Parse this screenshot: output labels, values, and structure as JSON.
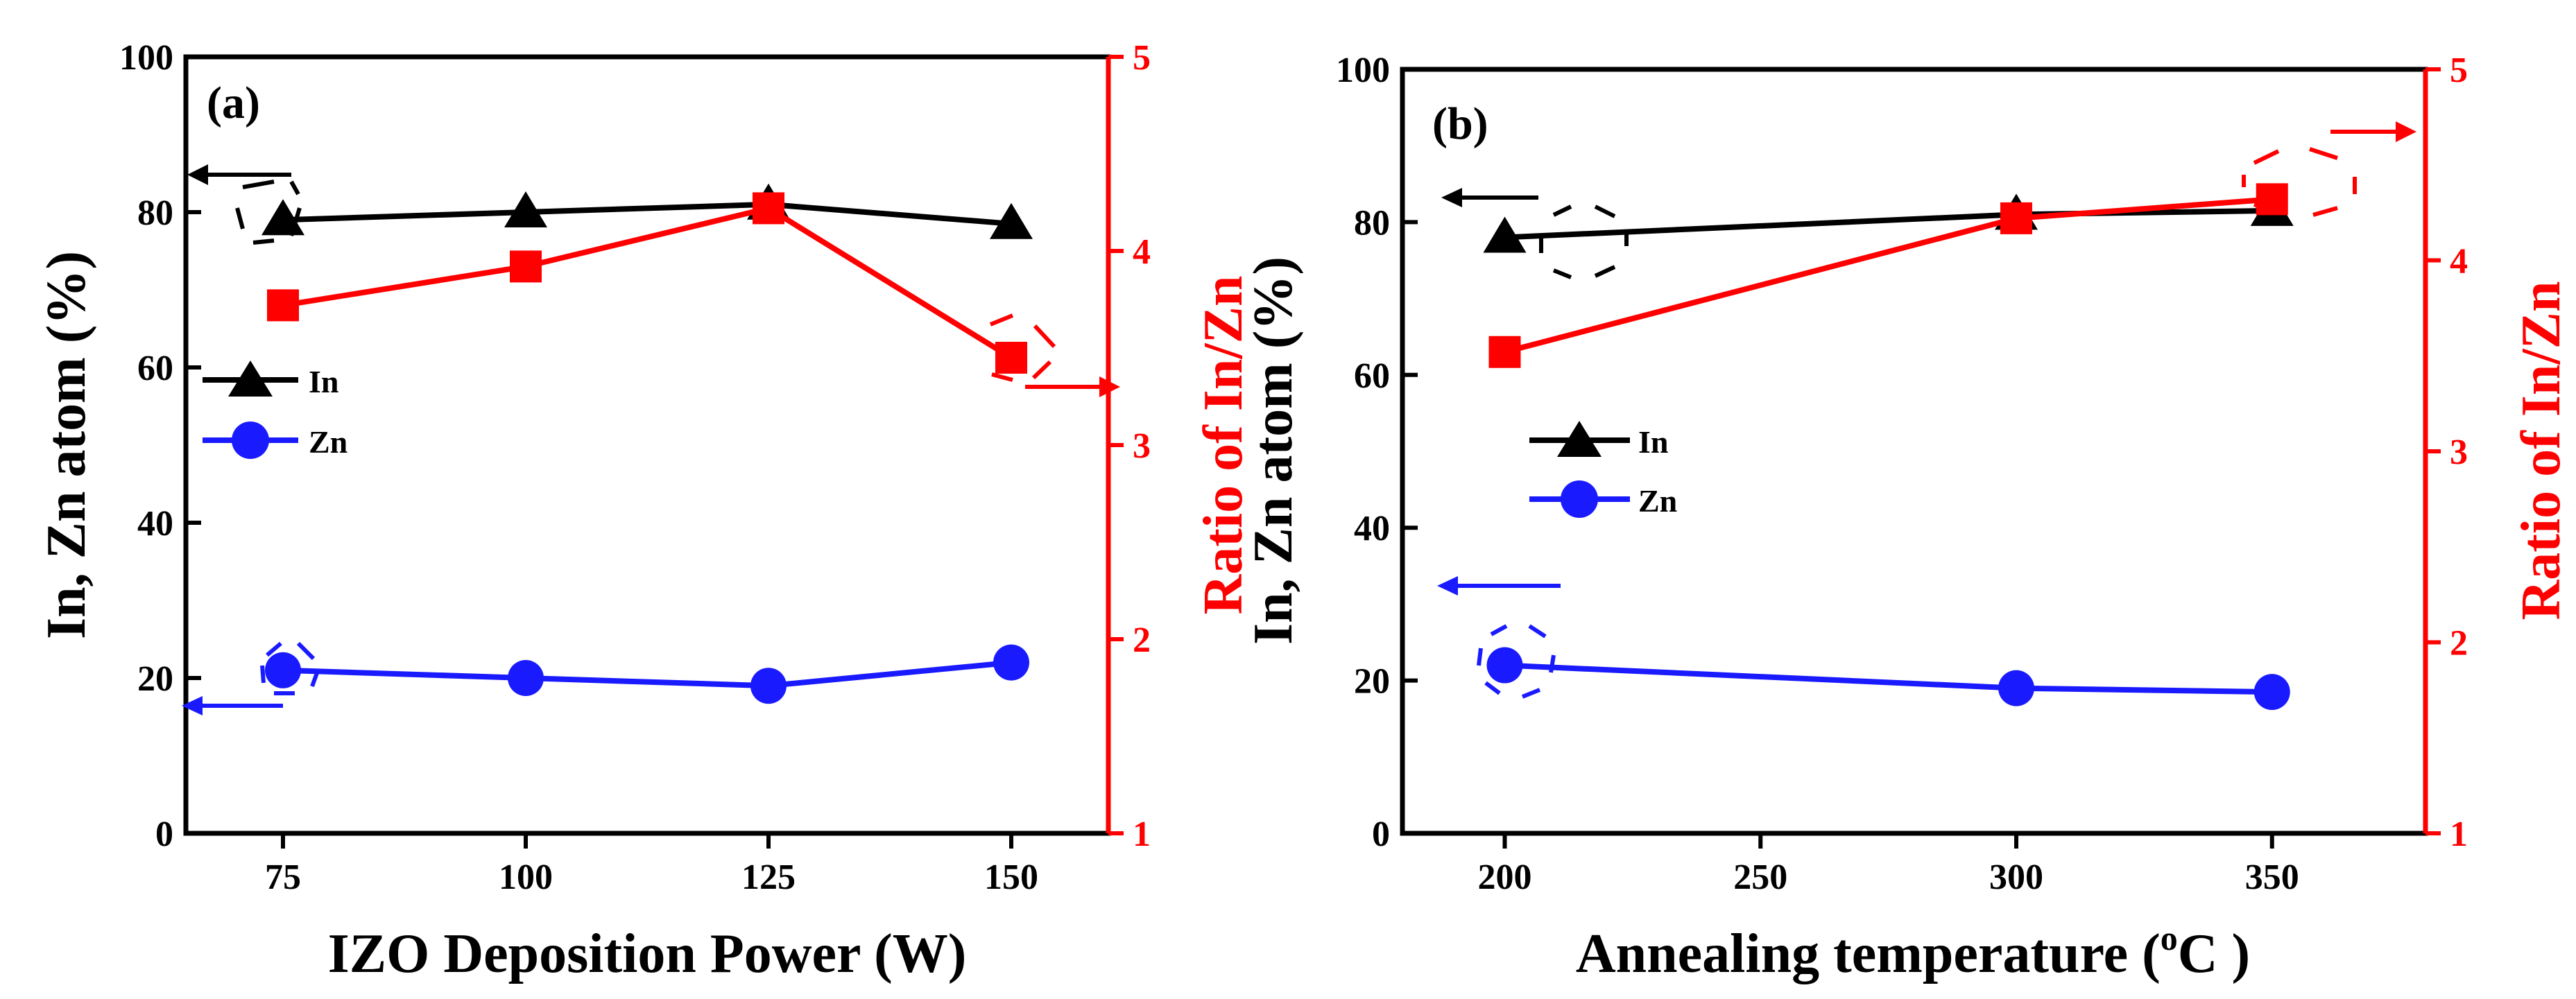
{
  "chart_data": [
    {
      "type": "line",
      "panel_label": "(a)",
      "xlabel": "IZO Deposition Power (W)",
      "ylabel": "In, Zn atom (%)",
      "y2label": "Ratio of In/Zn",
      "xlim": [
        65,
        160
      ],
      "ylim": [
        0,
        100
      ],
      "y2lim": [
        1,
        5
      ],
      "xticks": [
        "75",
        "100",
        "125",
        "150"
      ],
      "yticks": [
        "0",
        "20",
        "40",
        "60",
        "80",
        "100"
      ],
      "y2ticks": [
        "1",
        "2",
        "3",
        "4",
        "5"
      ],
      "x": [
        75,
        100,
        125,
        150
      ],
      "series": [
        {
          "name": "In",
          "axis": "left",
          "marker": "triangle",
          "color": "#000000",
          "values": [
            79,
            80,
            81,
            78.5
          ]
        },
        {
          "name": "Zn",
          "axis": "left",
          "marker": "circle",
          "color": "#1a1aff",
          "values": [
            21,
            20,
            19,
            22
          ]
        },
        {
          "name": "Ratio of In/Zn",
          "axis": "right",
          "marker": "square",
          "color": "#ff0000",
          "values": [
            3.72,
            3.92,
            4.22,
            3.45
          ]
        }
      ],
      "legend": [
        "In",
        "Zn"
      ]
    },
    {
      "type": "line",
      "panel_label": "(b)",
      "xlabel_main": "Annealing temperature (",
      "xlabel_sup": "o",
      "xlabel_end": "C )",
      "ylabel": "In, Zn atom (%)",
      "y2label": "Ratio of In/Zn",
      "xlim": [
        180,
        380
      ],
      "ylim": [
        0,
        100
      ],
      "y2lim": [
        1,
        5
      ],
      "xticks": [
        "200",
        "250",
        "300",
        "350"
      ],
      "yticks": [
        "0",
        "20",
        "40",
        "60",
        "80",
        "100"
      ],
      "y2ticks": [
        "1",
        "2",
        "3",
        "4",
        "5"
      ],
      "x": [
        200,
        300,
        350
      ],
      "series": [
        {
          "name": "In",
          "axis": "left",
          "marker": "triangle",
          "color": "#000000",
          "values": [
            78,
            81,
            81.5
          ]
        },
        {
          "name": "Zn",
          "axis": "left",
          "marker": "circle",
          "color": "#1a1aff",
          "values": [
            22,
            19,
            18.5
          ]
        },
        {
          "name": "Ratio of In/Zn",
          "axis": "right",
          "marker": "square",
          "color": "#ff0000",
          "values": [
            3.52,
            4.22,
            4.32
          ]
        }
      ],
      "legend": [
        "In",
        "Zn"
      ]
    }
  ]
}
